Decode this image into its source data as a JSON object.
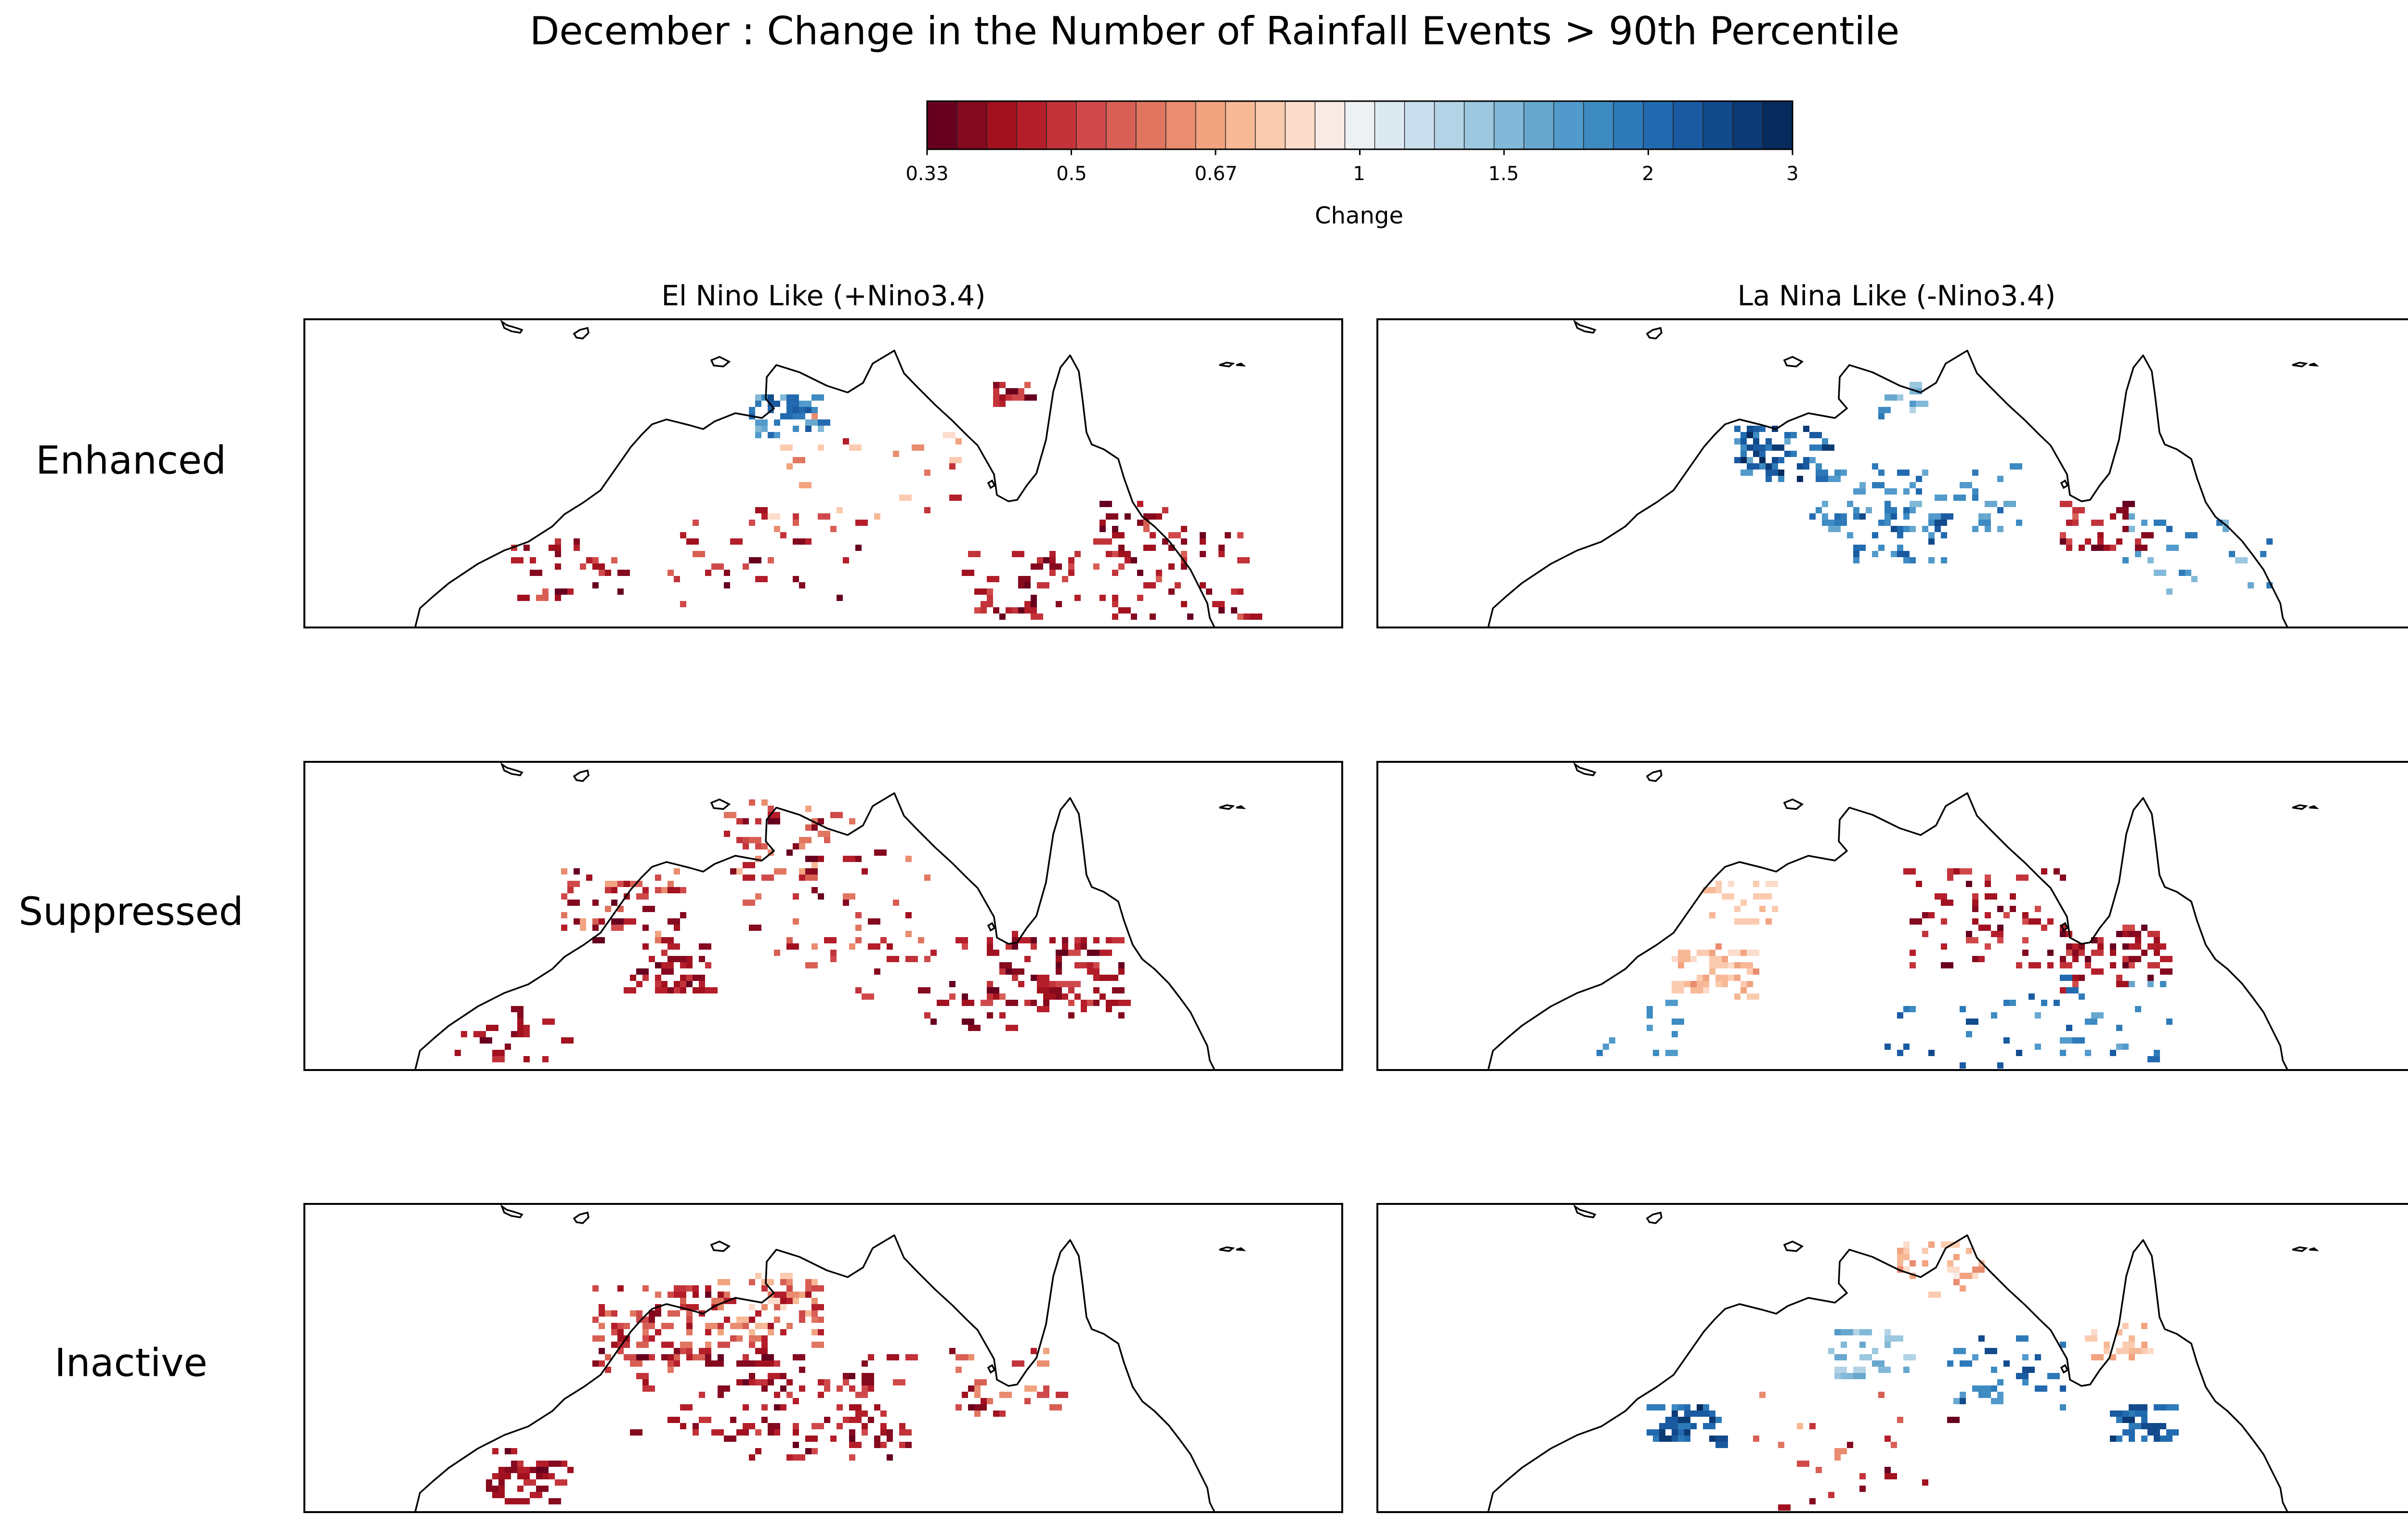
{
  "chart_data": {
    "type": "heatmap",
    "title": "December : Change in the Number of Rainfall Events > 90th Percentile",
    "colorbar": {
      "label": "Change",
      "ticks": [
        "0.33",
        "0.5",
        "0.67",
        "1",
        "1.5",
        "2",
        "3"
      ],
      "colors": [
        "#67001f",
        "#85091f",
        "#a1111f",
        "#b41e2a",
        "#c3333a",
        "#d0494a",
        "#d85f54",
        "#e07660",
        "#e98c6f",
        "#f2a380",
        "#f7b896",
        "#fbcbb0",
        "#fcdccb",
        "#f8eae5",
        "#eef1f4",
        "#dde9f1",
        "#c9dfed",
        "#b3d3e6",
        "#9bc7df",
        "#82b9d8",
        "#68a8cf",
        "#519acb",
        "#3d8bc1",
        "#2e7ab9",
        "#226aaf",
        "#1a5aa1",
        "#124a8c",
        "#0b3a75",
        "#062b5c"
      ],
      "scale": "log (ratio)"
    },
    "columns": [
      "El Nino Like (+Nino3.4)",
      "La Nina Like (-Nino3.4)"
    ],
    "rows": [
      "Enhanced",
      "Suppressed",
      "Inactive"
    ],
    "panels": [
      {
        "row": "Enhanced",
        "column": "El Nino Like (+Nino3.4)",
        "dominant": "increase near north coast; decrease in south-east and inland"
      },
      {
        "row": "Enhanced",
        "column": "La Nina Like (-Nino3.4)",
        "dominant": "increase in north-west and interior"
      },
      {
        "row": "Suppressed",
        "column": "El Nino Like (+Nino3.4)",
        "dominant": "widespread decrease"
      },
      {
        "row": "Suppressed",
        "column": "La Nina Like (-Nino3.4)",
        "dominant": "mixed; decrease central, increase south"
      },
      {
        "row": "Inactive",
        "column": "El Nino Like (+Nino3.4)",
        "dominant": "widespread decrease"
      },
      {
        "row": "Inactive",
        "column": "La Nina Like (-Nino3.4)",
        "dominant": "increase south-west and east; decrease north coast"
      }
    ]
  },
  "labels": {
    "title": "December : Change in the Number of Rainfall Events > 90th Percentile",
    "colorbar_label": "Change",
    "tick_0": "0.33",
    "tick_1": "0.5",
    "tick_2": "0.67",
    "tick_3": "1",
    "tick_4": "1.5",
    "tick_5": "2",
    "tick_6": "3",
    "col_0": "El Nino Like (+Nino3.4)",
    "col_1": "La Nina Like (-Nino3.4)",
    "row_0": "Enhanced",
    "row_1": "Suppressed",
    "row_2": "Inactive"
  }
}
